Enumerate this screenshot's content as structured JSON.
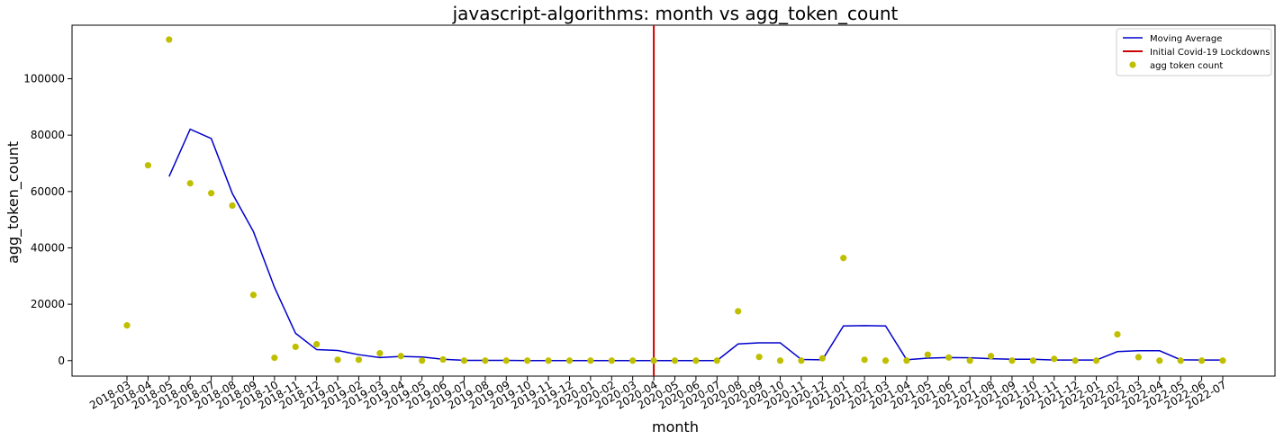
{
  "chart_data": {
    "type": "line",
    "title": "javascript-algorithms: month vs agg_token_count",
    "xlabel": "month",
    "ylabel": "agg_token_count",
    "ylim": [
      -5500,
      119000
    ],
    "yticks": [
      0,
      20000,
      40000,
      60000,
      80000,
      100000
    ],
    "grid": false,
    "legend_position": "upper-right",
    "categories": [
      "2018-03",
      "2018-04",
      "2018-05",
      "2018-06",
      "2018-07",
      "2018-08",
      "2018-09",
      "2018-10",
      "2018-11",
      "2018-12",
      "2019-01",
      "2019-02",
      "2019-03",
      "2019-04",
      "2019-05",
      "2019-06",
      "2019-07",
      "2019-08",
      "2019-09",
      "2019-10",
      "2019-11",
      "2019-12",
      "2020-01",
      "2020-02",
      "2020-03",
      "2020-04",
      "2020-05",
      "2020-06",
      "2020-07",
      "2020-08",
      "2020-09",
      "2020-10",
      "2020-11",
      "2020-12",
      "2021-01",
      "2021-02",
      "2021-03",
      "2021-04",
      "2021-05",
      "2021-06",
      "2021-07",
      "2021-08",
      "2021-09",
      "2021-10",
      "2021-11",
      "2021-12",
      "2022-01",
      "2022-02",
      "2022-03",
      "2022-04",
      "2022-05",
      "2022-06",
      "2022-07"
    ],
    "series": [
      {
        "name": "Moving Average",
        "kind": "line",
        "color": "#0000cc",
        "values": [
          null,
          null,
          65300,
          82100,
          78800,
          59300,
          45800,
          26000,
          9700,
          3900,
          3600,
          2100,
          1100,
          1500,
          1300,
          500,
          100,
          100,
          100,
          0,
          0,
          0,
          0,
          0,
          0,
          0,
          0,
          0,
          0,
          5900,
          6300,
          6300,
          400,
          300,
          12300,
          12400,
          12300,
          300,
          900,
          1100,
          1000,
          700,
          500,
          500,
          200,
          200,
          200,
          3200,
          3500,
          3500,
          300,
          200,
          200
        ]
      },
      {
        "name": "agg token count",
        "kind": "scatter",
        "color": "#bfbf00",
        "values": [
          12500,
          69300,
          113900,
          62900,
          59400,
          55000,
          23300,
          1000,
          4900,
          5800,
          300,
          300,
          2600,
          1600,
          0,
          400,
          0,
          0,
          0,
          0,
          0,
          0,
          0,
          0,
          0,
          0,
          0,
          0,
          0,
          17500,
          1300,
          0,
          0,
          800,
          36400,
          300,
          0,
          0,
          2100,
          1100,
          0,
          1600,
          0,
          0,
          600,
          0,
          0,
          9300,
          1200,
          0,
          0,
          0,
          0
        ]
      }
    ],
    "vlines": [
      {
        "name": "Initial Covid-19 Lockdowns",
        "x": "2020-04",
        "color": "#cc0000"
      }
    ]
  }
}
